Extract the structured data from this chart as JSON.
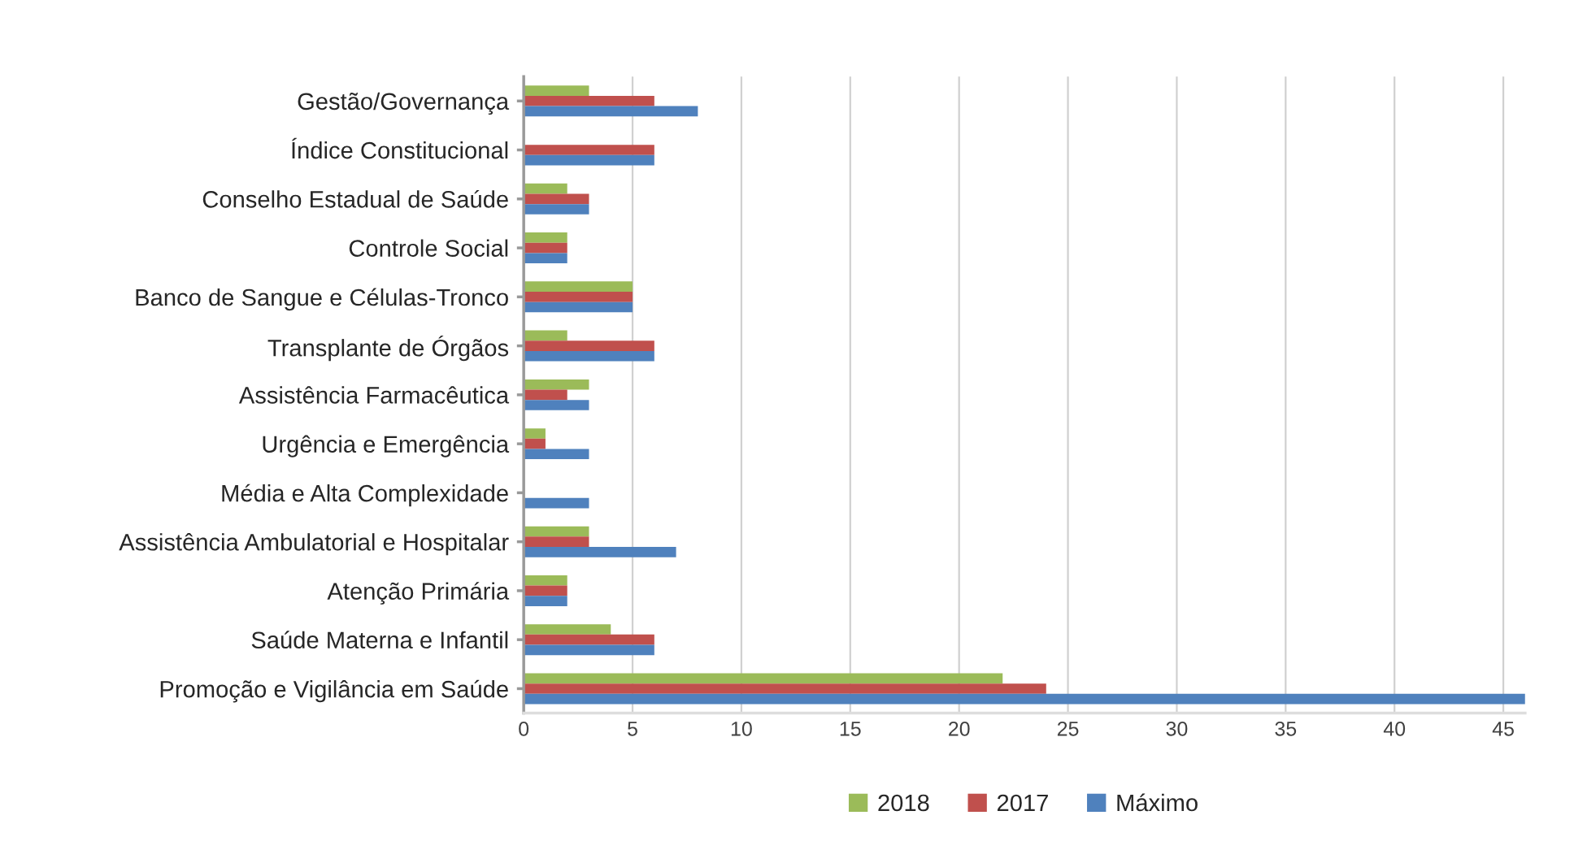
{
  "chart_data": {
    "type": "bar",
    "orientation": "horizontal",
    "categories": [
      "Gestão/Governança",
      "Índice Constitucional",
      "Conselho Estadual de Saúde",
      "Controle Social",
      "Banco de Sangue e Células-Tronco",
      "Transplante de Órgãos",
      "Assistência Farmacêutica",
      "Urgência e Emergência",
      "Média e Alta Complexidade",
      "Assistência Ambulatorial e Hospitalar",
      "Atenção Primária",
      "Saúde Materna e Infantil",
      "Promoção e Vigilância em Saúde"
    ],
    "series": [
      {
        "name": "2018",
        "color": "#9bbb59",
        "values": [
          3,
          null,
          2,
          2,
          5,
          2,
          3,
          1,
          null,
          3,
          2,
          4,
          22
        ]
      },
      {
        "name": "2017",
        "color": "#c0504d",
        "values": [
          6,
          6,
          3,
          2,
          5,
          6,
          2,
          1,
          null,
          3,
          2,
          6,
          24
        ]
      },
      {
        "name": "Máximo",
        "color": "#4f81bd",
        "values": [
          8,
          6,
          3,
          2,
          5,
          6,
          3,
          3,
          3,
          7,
          2,
          6,
          46
        ]
      }
    ],
    "xlim": [
      0,
      46
    ],
    "xticks": [
      0,
      5,
      10,
      15,
      20,
      25,
      30,
      35,
      40,
      45
    ],
    "grid": "x",
    "legend": "bottom"
  }
}
